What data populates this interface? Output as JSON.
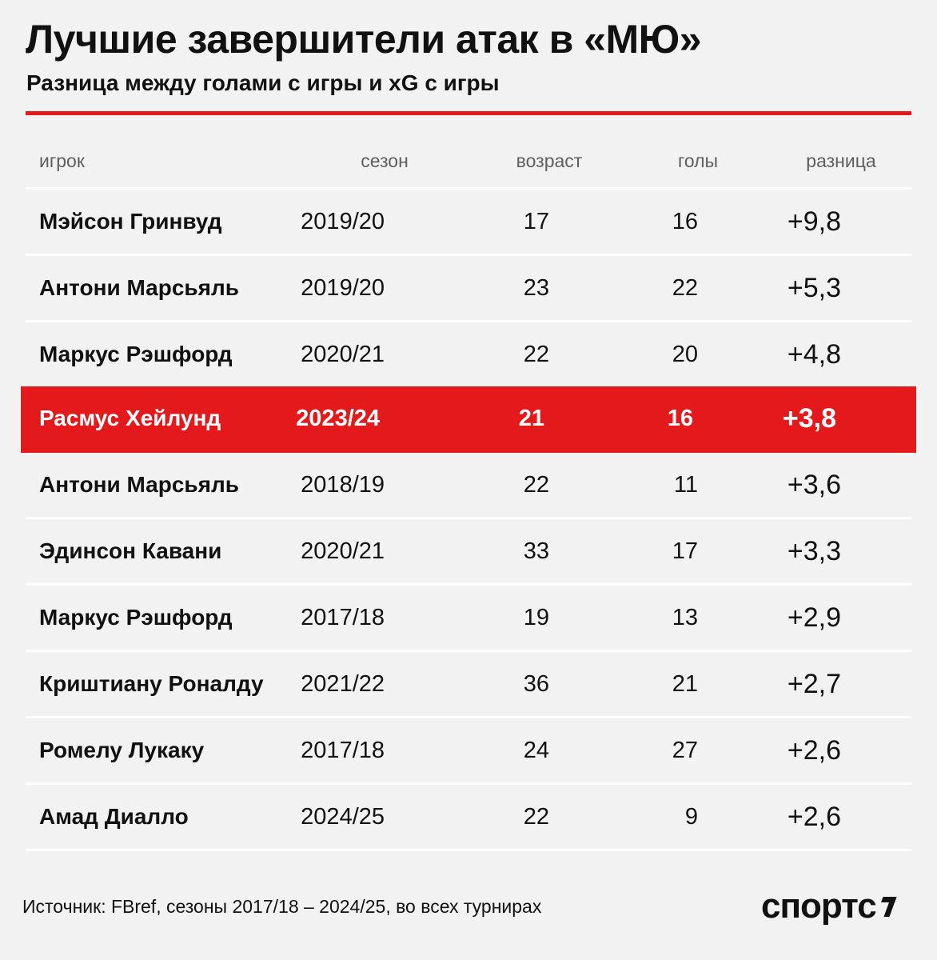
{
  "title": "Лучшие завершители атак в «МЮ»",
  "subtitle": "Разница между голами с игры и xG с игры",
  "colors": {
    "accent": "#e3191b",
    "background": "#f2f2f2",
    "text": "#111111",
    "muted": "#5e5e5e"
  },
  "chart_data": {
    "type": "table",
    "columns": [
      "игрок",
      "сезон",
      "возраст",
      "голы",
      "разница"
    ],
    "rows": [
      {
        "player": "Мэйсон Гринвуд",
        "season": "2019/20",
        "age": "17",
        "goals": "16",
        "diff": "+9,8",
        "highlight": false
      },
      {
        "player": "Антони Марсьяль",
        "season": "2019/20",
        "age": "23",
        "goals": "22",
        "diff": "+5,3",
        "highlight": false
      },
      {
        "player": "Маркус Рэшфорд",
        "season": "2020/21",
        "age": "22",
        "goals": "20",
        "diff": "+4,8",
        "highlight": false
      },
      {
        "player": "Расмус Хейлунд",
        "season": "2023/24",
        "age": "21",
        "goals": "16",
        "diff": "+3,8",
        "highlight": true
      },
      {
        "player": "Антони Марсьяль",
        "season": "2018/19",
        "age": "22",
        "goals": "11",
        "diff": "+3,6",
        "highlight": false
      },
      {
        "player": "Эдинсон Кавани",
        "season": "2020/21",
        "age": "33",
        "goals": "17",
        "diff": "+3,3",
        "highlight": false
      },
      {
        "player": "Маркус Рэшфорд",
        "season": "2017/18",
        "age": "19",
        "goals": "13",
        "diff": "+2,9",
        "highlight": false
      },
      {
        "player": "Криштиану Роналду",
        "season": "2021/22",
        "age": "36",
        "goals": "21",
        "diff": "+2,7",
        "highlight": false
      },
      {
        "player": "Ромелу Лукаку",
        "season": "2017/18",
        "age": "24",
        "goals": "27",
        "diff": "+2,6",
        "highlight": false
      },
      {
        "player": "Амад Диалло",
        "season": "2024/25",
        "age": "22",
        "goals": "9",
        "diff": "+2,6",
        "highlight": false
      }
    ]
  },
  "footer": {
    "source": "Источник: FBref, сезоны 2017/18 – 2024/25, во всех турнирах",
    "logo_text": "спортс",
    "logo_icon": "sports-ru-logo-mark-icon"
  }
}
